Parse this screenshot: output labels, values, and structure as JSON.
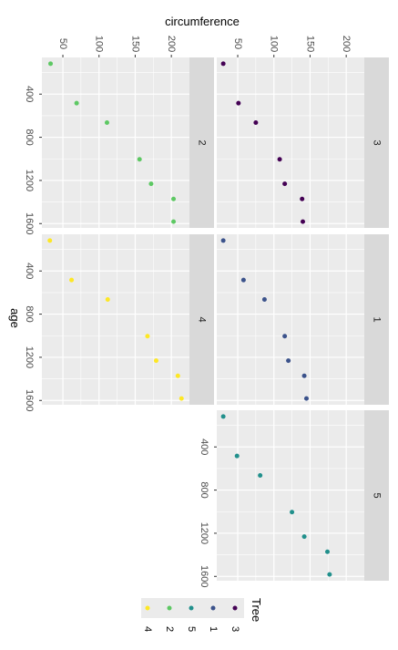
{
  "chart_data": {
    "type": "scatter",
    "x_label": "age",
    "y_label": "circumference",
    "x_ticks": [
      400,
      800,
      1200,
      1600
    ],
    "y_ticks": [
      50,
      100,
      150,
      200
    ],
    "x_range": [
      60,
      1640
    ],
    "y_range": [
      21,
      225
    ],
    "facet_order": [
      "3",
      "1",
      "5",
      "2",
      "4"
    ],
    "legend": {
      "title": "Tree",
      "order": [
        "3",
        "1",
        "5",
        "2",
        "4"
      ]
    },
    "series": [
      {
        "name": "3",
        "color": "#440154",
        "x": [
          118,
          484,
          664,
          1004,
          1231,
          1372,
          1582
        ],
        "y": [
          30,
          51,
          75,
          108,
          115,
          139,
          140
        ]
      },
      {
        "name": "1",
        "color": "#3b528b",
        "x": [
          118,
          484,
          664,
          1004,
          1231,
          1372,
          1582
        ],
        "y": [
          30,
          58,
          87,
          115,
          120,
          142,
          145
        ]
      },
      {
        "name": "5",
        "color": "#21908c",
        "x": [
          118,
          484,
          664,
          1004,
          1231,
          1372,
          1582
        ],
        "y": [
          30,
          49,
          81,
          125,
          142,
          174,
          177
        ]
      },
      {
        "name": "2",
        "color": "#5dc863",
        "x": [
          118,
          484,
          664,
          1004,
          1231,
          1372,
          1582
        ],
        "y": [
          33,
          69,
          111,
          156,
          172,
          203,
          203
        ]
      },
      {
        "name": "4",
        "color": "#fde725",
        "x": [
          118,
          484,
          664,
          1004,
          1231,
          1372,
          1582
        ],
        "y": [
          32,
          62,
          112,
          167,
          179,
          209,
          214
        ]
      }
    ]
  }
}
